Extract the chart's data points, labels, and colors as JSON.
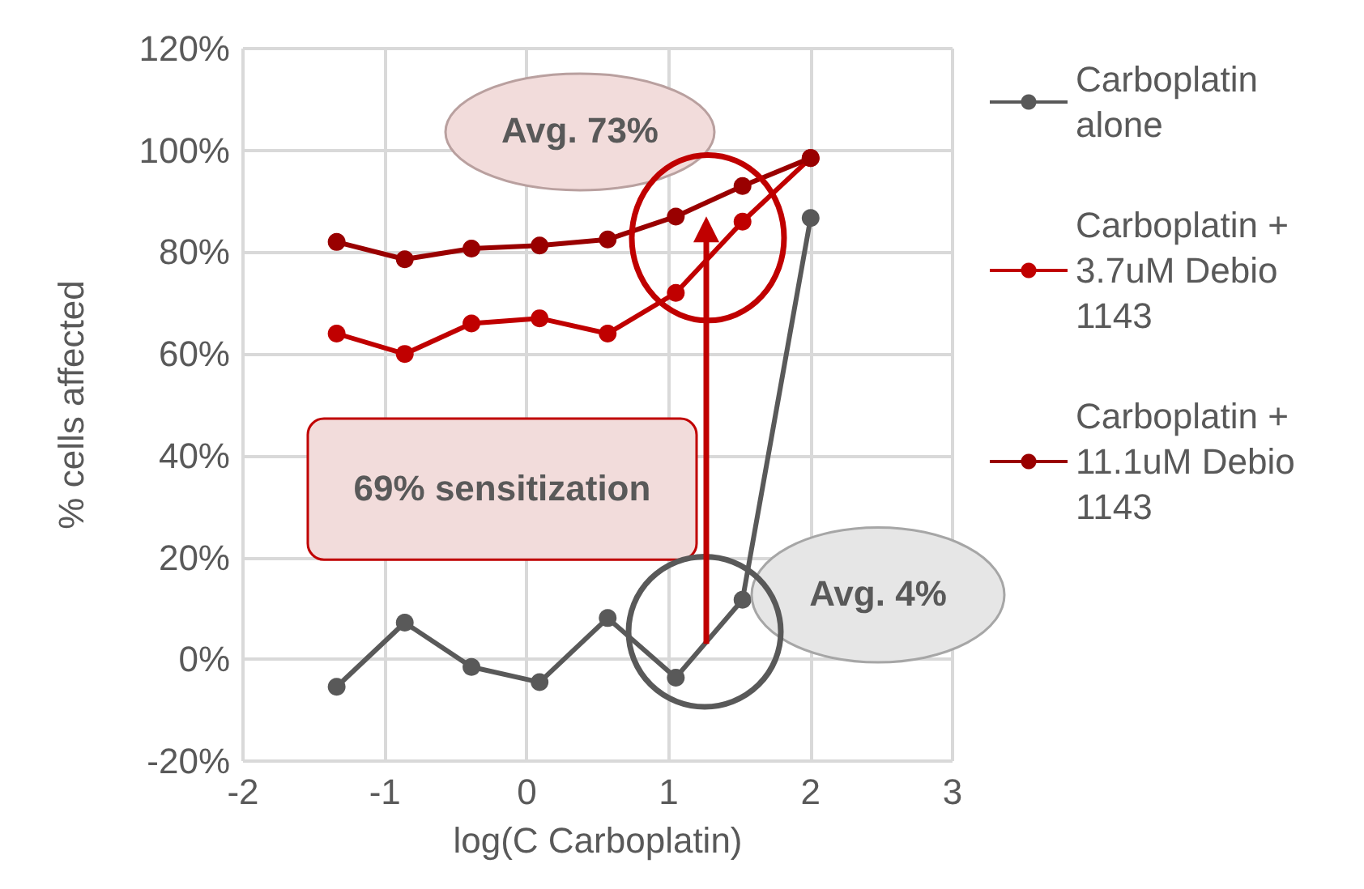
{
  "chart_data": {
    "type": "line",
    "xlabel": "log(C Carboplatin)",
    "ylabel": "% cells affected",
    "xlim": [
      -2,
      3
    ],
    "xticks": [
      -2,
      -1,
      0,
      1,
      2,
      3
    ],
    "ylim": [
      -20,
      120
    ],
    "yticks": [
      {
        "value": -20,
        "label": "-20%"
      },
      {
        "value": 0,
        "label": "0%"
      },
      {
        "value": 20,
        "label": "20%"
      },
      {
        "value": 40,
        "label": "40%"
      },
      {
        "value": 60,
        "label": "60%"
      },
      {
        "value": 80,
        "label": "80%"
      },
      {
        "value": 100,
        "label": "100%"
      },
      {
        "value": 120,
        "label": "120%"
      }
    ],
    "x": [
      -1.34,
      -0.86,
      -0.39,
      0.09,
      0.57,
      1.05,
      1.52,
      2.0
    ],
    "series": [
      {
        "name": "Carboplatin alone",
        "color": "#595959",
        "values": [
          -5.4,
          7.2,
          -1.5,
          -4.5,
          8.1,
          -3.6,
          11.7,
          86.7
        ]
      },
      {
        "name": "Carboplatin + 3.7uM Debio 1143",
        "color": "#c00000",
        "values": [
          64,
          60,
          66,
          67,
          64,
          72,
          86,
          98.5
        ]
      },
      {
        "name": "Carboplatin + 11.1uM Debio 1143",
        "color": "#990000",
        "values": [
          82,
          78.6,
          80.7,
          81.3,
          82.5,
          87,
          93,
          98.5
        ]
      }
    ],
    "annotations": [
      "Avg. 73%",
      "69% sensitization",
      "Avg. 4%"
    ],
    "grid": true,
    "legend": "right",
    "marker": "circle",
    "line_style": "solid"
  }
}
